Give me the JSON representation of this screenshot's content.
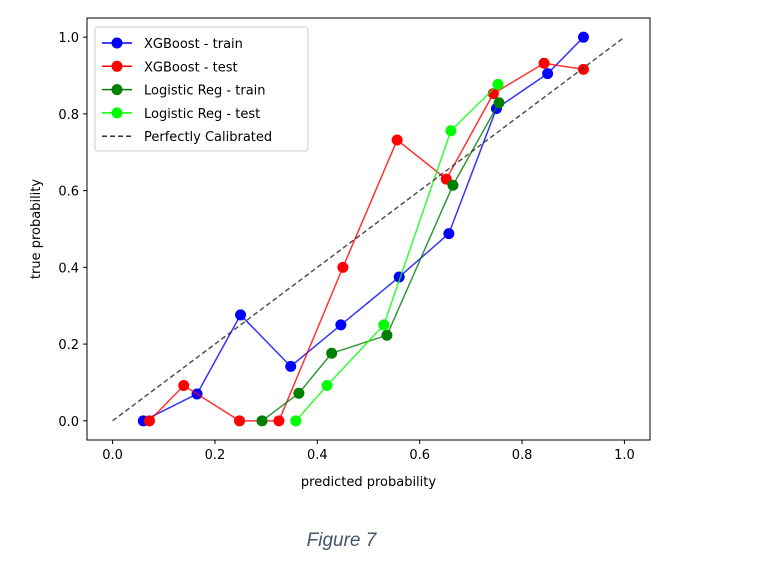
{
  "caption": "Figure 7",
  "chart_data": {
    "type": "line",
    "title": "",
    "xlabel": "predicted probability",
    "ylabel": "true probability",
    "xlim": [
      -0.05,
      1.05
    ],
    "ylim": [
      -0.05,
      1.05
    ],
    "xticks": [
      "0.0",
      "0.2",
      "0.4",
      "0.6",
      "0.8",
      "1.0"
    ],
    "yticks": [
      "0.0",
      "0.2",
      "0.4",
      "0.6",
      "0.8",
      "1.0"
    ],
    "grid": false,
    "legend_position": "top-left",
    "series": [
      {
        "name": "XGBoost - train",
        "color": "#0000ff",
        "marker": true,
        "x": [
          0.06,
          0.165,
          0.25,
          0.348,
          0.446,
          0.56,
          0.657,
          0.75,
          0.85,
          0.92
        ],
        "y": [
          0.0,
          0.07,
          0.276,
          0.142,
          0.25,
          0.375,
          0.488,
          0.814,
          0.905,
          1.0
        ]
      },
      {
        "name": "XGBoost - test",
        "color": "#ff0000",
        "marker": true,
        "x": [
          0.072,
          0.139,
          0.248,
          0.325,
          0.45,
          0.556,
          0.652,
          0.744,
          0.843,
          0.92
        ],
        "y": [
          0.0,
          0.092,
          0.0,
          0.0,
          0.4,
          0.732,
          0.63,
          0.853,
          0.932,
          0.916
        ]
      },
      {
        "name": "Logistic Reg - train",
        "color": "#008000",
        "marker": true,
        "x": [
          0.292,
          0.364,
          0.428,
          0.536,
          0.665,
          0.755
        ],
        "y": [
          0.0,
          0.072,
          0.176,
          0.223,
          0.614,
          0.829
        ]
      },
      {
        "name": "Logistic Reg - test",
        "color": "#00ff00",
        "marker": true,
        "x": [
          0.358,
          0.419,
          0.53,
          0.661,
          0.753
        ],
        "y": [
          0.0,
          0.092,
          0.25,
          0.756,
          0.877
        ]
      },
      {
        "name": "Perfectly Calibrated",
        "color": "#333333",
        "marker": false,
        "dashed": true,
        "x": [
          0,
          1
        ],
        "y": [
          0,
          1
        ]
      }
    ]
  }
}
